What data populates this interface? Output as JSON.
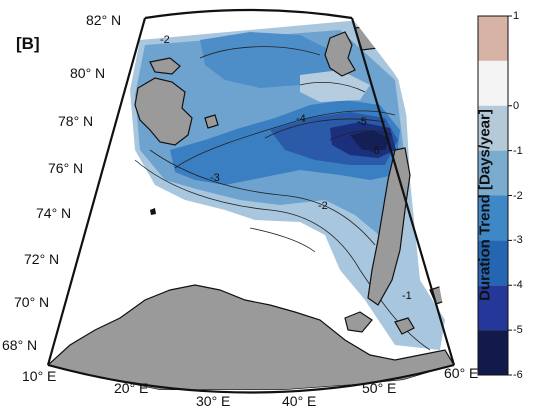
{
  "panel_label": "[B]",
  "latitude_labels": [
    "82° N",
    "80° N",
    "78° N",
    "76° N",
    "74° N",
    "72° N",
    "70° N",
    "68° N"
  ],
  "longitude_labels": [
    "10° E",
    "20° E",
    "30° E",
    "40° E",
    "50° E",
    "60° E"
  ],
  "colorbar": {
    "title": "Duration Trend [Days/year]",
    "ticks": [
      "1",
      "0",
      "-1",
      "-2",
      "-3",
      "-4",
      "-5",
      "-6"
    ],
    "colors": [
      "#d7b3a6",
      "#f4f4f4",
      "#b4cad9",
      "#7bacd0",
      "#3f88c6",
      "#2566b2",
      "#24389a",
      "#121a4b"
    ]
  },
  "contour_labels": [
    "-1",
    "-2",
    "-3",
    "-4",
    "-5",
    "-6"
  ],
  "colors": {
    "land": "#9a9a9a",
    "ocean_unshaded": "#ffffff",
    "frame": "#111111"
  }
}
